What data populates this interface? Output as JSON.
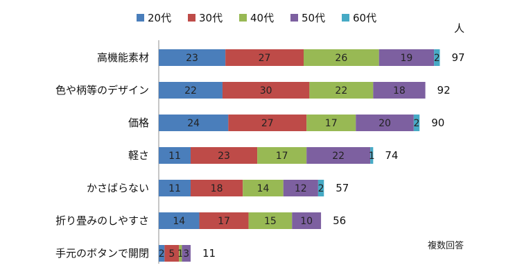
{
  "chart_data": {
    "type": "bar",
    "orientation": "horizontal",
    "stacked": true,
    "unit_label": "人",
    "note": "複数回答",
    "categories": [
      "高機能素材",
      "色や柄等のデザイン",
      "価格",
      "軽さ",
      "かさばらない",
      "折り畳みのしやすさ",
      "手元のボタンで開閉"
    ],
    "series": [
      {
        "name": "20代",
        "color": "#4a7ebb",
        "values": [
          23,
          22,
          24,
          11,
          11,
          14,
          2
        ]
      },
      {
        "name": "30代",
        "color": "#be4b48",
        "values": [
          27,
          30,
          27,
          23,
          18,
          17,
          5
        ]
      },
      {
        "name": "40代",
        "color": "#98b954",
        "values": [
          26,
          22,
          17,
          17,
          14,
          15,
          1
        ]
      },
      {
        "name": "50代",
        "color": "#7d60a0",
        "values": [
          19,
          18,
          20,
          22,
          12,
          10,
          3
        ]
      },
      {
        "name": "60代",
        "color": "#46aac5",
        "values": [
          2,
          0,
          2,
          1,
          2,
          0,
          0
        ]
      }
    ],
    "totals": [
      97,
      92,
      90,
      74,
      57,
      56,
      11
    ],
    "xlim": [
      0,
      120
    ],
    "grid": false,
    "legend": "top"
  }
}
